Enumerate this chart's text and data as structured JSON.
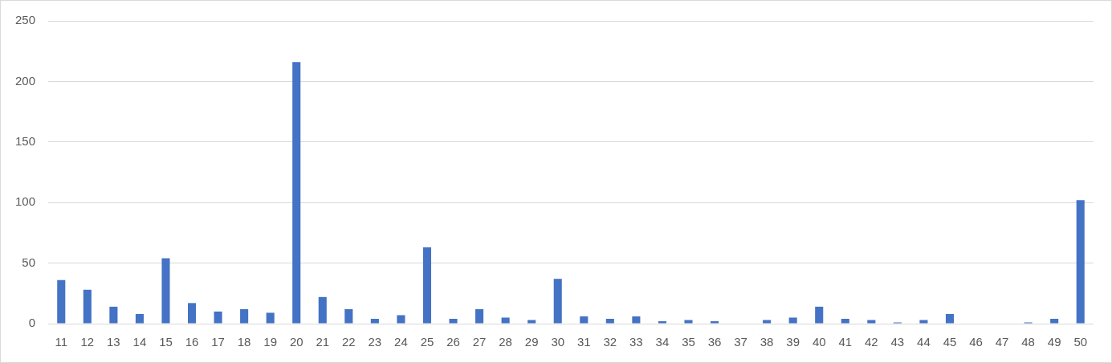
{
  "chart_data": {
    "type": "bar",
    "categories": [
      "11",
      "12",
      "13",
      "14",
      "15",
      "16",
      "17",
      "18",
      "19",
      "20",
      "21",
      "22",
      "23",
      "24",
      "25",
      "26",
      "27",
      "28",
      "29",
      "30",
      "31",
      "32",
      "33",
      "34",
      "35",
      "36",
      "37",
      "38",
      "39",
      "40",
      "41",
      "42",
      "43",
      "44",
      "45",
      "46",
      "47",
      "48",
      "49",
      "50"
    ],
    "values": [
      36,
      28,
      14,
      8,
      54,
      17,
      10,
      12,
      9,
      216,
      22,
      12,
      4,
      7,
      63,
      4,
      12,
      5,
      3,
      37,
      6,
      4,
      6,
      2,
      3,
      2,
      0,
      3,
      5,
      14,
      4,
      3,
      1,
      3,
      8,
      0,
      0,
      1,
      4,
      102
    ],
    "color": "#4472c4",
    "ylim": [
      0,
      250
    ],
    "yticks": [
      0,
      50,
      100,
      150,
      200,
      250
    ],
    "grid": "y"
  }
}
